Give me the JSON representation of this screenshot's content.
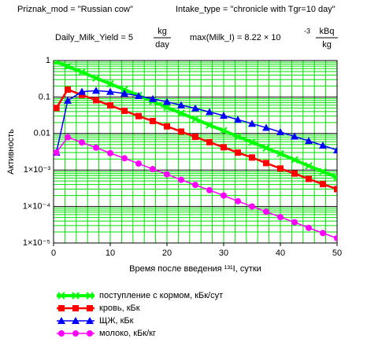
{
  "chart_data": {
    "type": "line",
    "header": [
      "Priznak_mod = \"Russian cow\"",
      "Intake_type = \"chronicle with Tgr=10 day\""
    ],
    "formulas": [
      {
        "text": "Daily_Milk_Yield = 5",
        "numerator": "kg",
        "denominator": "day"
      },
      {
        "text": "max(Milk_I) = 8.22 × 10",
        "superscript": "-3",
        "numerator": "kBq",
        "denominator": "kg"
      }
    ],
    "xlabel": "Время после введения ¹³¹I, сутки",
    "ylabel": "Активность",
    "log_y": true,
    "grid": true,
    "legend": "bottom",
    "xlim": [
      0,
      50
    ],
    "xticks": [
      0,
      10,
      20,
      30,
      40,
      50
    ],
    "ylim": [
      1e-05,
      1
    ],
    "yticks": [
      1,
      0.1,
      0.01,
      {
        "value": 0.001,
        "label": "1×10⁻³"
      },
      {
        "value": 0.0001,
        "label": "1×10⁻⁴"
      },
      {
        "value": 1e-05,
        "label": "1×10⁻⁵"
      }
    ],
    "x": [
      0.5,
      2.5,
      5,
      7.5,
      10,
      12.5,
      15,
      17.5,
      20,
      22.5,
      25,
      27.5,
      30,
      32.5,
      35,
      37.5,
      40,
      42.5,
      45,
      47.5,
      50
    ],
    "series": [
      {
        "name": "поступление с кормом, кБк/сут",
        "color": "#00ff00",
        "marker": "x",
        "values": [
          0.93,
          0.69,
          0.48,
          0.33,
          0.23,
          0.16,
          0.11,
          0.076,
          0.052,
          0.036,
          0.025,
          0.017,
          0.012,
          0.0083,
          0.0058,
          0.004,
          0.0028,
          0.0019,
          0.0013,
          0.00091,
          0.00063
        ]
      },
      {
        "name": "кровь, кБк",
        "color": "#ff0000",
        "marker": "square",
        "values": [
          0.05,
          0.16,
          0.114,
          0.082,
          0.059,
          0.042,
          0.03,
          0.022,
          0.0157,
          0.0113,
          0.0081,
          0.0058,
          0.0042,
          0.003,
          0.0022,
          0.00155,
          0.0011,
          0.0008,
          0.00057,
          0.00041,
          0.0003
        ]
      },
      {
        "name": "ЩЖ, кБк",
        "color": "#0000ff",
        "marker": "triangle",
        "values": [
          0.003,
          0.08,
          0.14,
          0.15,
          0.14,
          0.126,
          0.107,
          0.089,
          0.074,
          0.06,
          0.049,
          0.039,
          0.031,
          0.024,
          0.0186,
          0.0145,
          0.011,
          0.0083,
          0.0063,
          0.0047,
          0.0035
        ]
      },
      {
        "name": "молоко, кБк/кг",
        "color": "#ff00ff",
        "marker": "circle",
        "values": [
          0.003,
          0.0079,
          0.0057,
          0.0041,
          0.0029,
          0.0021,
          0.0015,
          0.00106,
          0.00076,
          0.00054,
          0.00039,
          0.00028,
          0.0002,
          0.00014,
          0.0001,
          7.2e-05,
          5.1e-05,
          3.7e-05,
          2.6e-05,
          1.87e-05,
          1.35e-05
        ]
      }
    ]
  }
}
